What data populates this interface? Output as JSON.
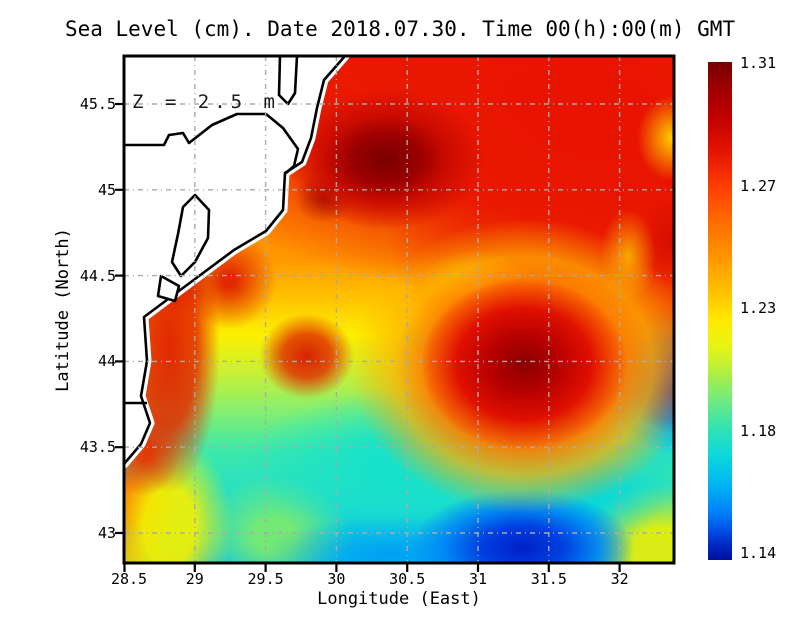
{
  "title": "Sea Level (cm). Date 2018.07.30. Time 00(h):00(m) GMT",
  "annotation": "Z = 2.5 m",
  "axes": {
    "xlabel": "Longitude (East)",
    "ylabel": "Latitude (North)",
    "xticks": [
      "28.5",
      "29",
      "29.5",
      "30",
      "30.5",
      "31",
      "31.5",
      "32"
    ],
    "yticks": [
      "45.5",
      "45",
      "44.5",
      "44",
      "43.5",
      "43"
    ]
  },
  "colorbar": {
    "ticks": [
      "1.31",
      "1.27",
      "1.23",
      "1.18",
      "1.14"
    ],
    "colormap": "jet",
    "top_color": "#760000",
    "bottom_color": "#00109e"
  },
  "chart_data": {
    "type": "heatmap",
    "title": "Sea Level (cm). Date 2018.07.30. Time 00(h):00(m) GMT",
    "xlabel": "Longitude (East)",
    "ylabel": "Latitude (North)",
    "annotation": "Z = 2.5 m",
    "xlim": [
      28.5,
      32.4
    ],
    "ylim": [
      42.83,
      45.78
    ],
    "xtick_values": [
      28.5,
      29,
      29.5,
      30,
      30.5,
      31,
      31.5,
      32
    ],
    "ytick_values": [
      45.5,
      45,
      44.5,
      44,
      43.5,
      43
    ],
    "value_range": [
      1.14,
      1.31
    ],
    "colorbar_ticks": [
      1.31,
      1.27,
      1.23,
      1.18,
      1.14
    ],
    "colormap": "jet",
    "grid": true,
    "grid_style": "gray dash-dot every 0.5 degree",
    "land": "White land with black coastline in upper-left (western Black Sea coast with Danube delta and lagoon outlines); white no-data staircase cells along shore",
    "features": [
      {
        "type": "maximum",
        "lon": 30.35,
        "lat": 45.2,
        "value": 1.31,
        "note": "dark red core NE of delta"
      },
      {
        "type": "maximum",
        "lon": 31.35,
        "lat": 43.9,
        "value": 1.3,
        "note": "dark red eddy centre-right"
      },
      {
        "type": "high",
        "lon": 31.6,
        "lat": 44.9,
        "value": 1.29,
        "note": "broad red field across upper half"
      },
      {
        "type": "high",
        "lon": 28.8,
        "lat": 44.3,
        "value": 1.29,
        "note": "red band hugging coast"
      },
      {
        "type": "high",
        "lon": 29.8,
        "lat": 44.0,
        "value": 1.28,
        "note": "small red blob"
      },
      {
        "type": "mid",
        "lon": 31.0,
        "lat": 44.5,
        "value": 1.24,
        "note": "yellow-green saddle between red systems"
      },
      {
        "type": "low",
        "lon": 30.7,
        "lat": 43.3,
        "value": 1.21,
        "note": "cyan band lower centre"
      },
      {
        "type": "minimum",
        "lon": 31.2,
        "lat": 42.9,
        "value": 1.15,
        "note": "dark blue patch at bottom"
      },
      {
        "type": "minimum",
        "lon": 32.4,
        "lat": 43.8,
        "value": 1.16,
        "note": "blue spot at right edge"
      },
      {
        "type": "mid",
        "lon": 28.7,
        "lat": 43.2,
        "value": 1.25,
        "note": "orange-red column at left edge below coast"
      },
      {
        "type": "mid",
        "lon": 32.3,
        "lat": 42.9,
        "value": 1.23,
        "note": "yellow bottom-right corner"
      }
    ]
  }
}
